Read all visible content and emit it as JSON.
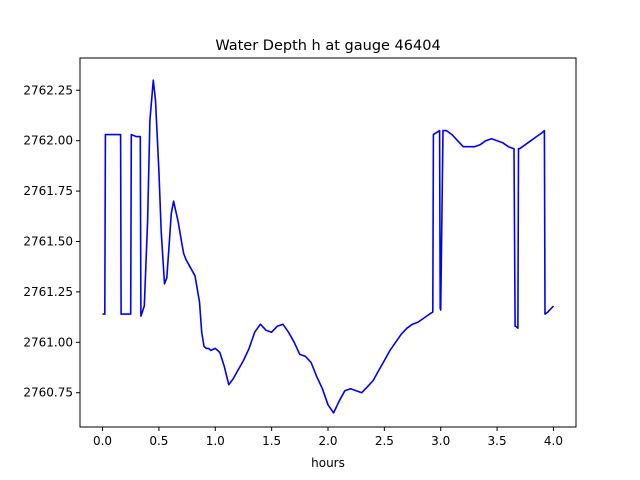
{
  "chart_data": {
    "type": "line",
    "title": "Water Depth h at gauge 46404",
    "xlabel": "hours",
    "ylabel": "",
    "xlim": [
      -0.2,
      4.2
    ],
    "ylim": [
      2760.58,
      2762.41
    ],
    "xticks": [
      0.0,
      0.5,
      1.0,
      1.5,
      2.0,
      2.5,
      3.0,
      3.5,
      4.0
    ],
    "xtick_labels": [
      "0.0",
      "0.5",
      "1.0",
      "1.5",
      "2.0",
      "2.5",
      "3.0",
      "3.5",
      "4.0"
    ],
    "yticks": [
      2760.75,
      2761.0,
      2761.25,
      2761.5,
      2761.75,
      2762.0,
      2762.25
    ],
    "ytick_labels": [
      "2760.75",
      "2761.00",
      "2761.25",
      "2761.50",
      "2761.75",
      "2762.00",
      "2762.25"
    ],
    "grid": false,
    "series": [
      {
        "color": "#0000ff",
        "x": [
          0.0,
          0.02,
          0.025,
          0.16,
          0.165,
          0.25,
          0.255,
          0.3,
          0.33,
          0.335,
          0.34,
          0.37,
          0.4,
          0.42,
          0.45,
          0.47,
          0.5,
          0.52,
          0.55,
          0.57,
          0.59,
          0.61,
          0.63,
          0.65,
          0.67,
          0.7,
          0.72,
          0.74,
          0.78,
          0.82,
          0.86,
          0.88,
          0.9,
          0.92,
          0.94,
          0.96,
          1.0,
          1.04,
          1.08,
          1.12,
          1.16,
          1.2,
          1.25,
          1.3,
          1.35,
          1.4,
          1.45,
          1.5,
          1.55,
          1.6,
          1.65,
          1.7,
          1.75,
          1.8,
          1.85,
          1.9,
          1.95,
          2.0,
          2.05,
          2.1,
          2.15,
          2.2,
          2.25,
          2.3,
          2.35,
          2.4,
          2.45,
          2.5,
          2.55,
          2.6,
          2.65,
          2.7,
          2.75,
          2.8,
          2.85,
          2.9,
          2.93,
          2.935,
          2.99,
          2.995,
          3.0,
          3.02,
          3.025,
          3.05,
          3.1,
          3.15,
          3.2,
          3.25,
          3.3,
          3.35,
          3.4,
          3.45,
          3.5,
          3.55,
          3.6,
          3.65,
          3.66,
          3.665,
          3.685,
          3.69,
          3.695,
          3.7,
          3.75,
          3.8,
          3.85,
          3.9,
          3.92,
          3.925,
          3.95,
          4.0
        ],
        "y": [
          2761.14,
          2761.14,
          2762.03,
          2762.03,
          2761.14,
          2761.14,
          2762.03,
          2762.02,
          2762.02,
          2762.02,
          2761.13,
          2761.18,
          2761.6,
          2762.1,
          2762.3,
          2762.2,
          2761.85,
          2761.55,
          2761.29,
          2761.32,
          2761.48,
          2761.64,
          2761.7,
          2761.65,
          2761.6,
          2761.5,
          2761.44,
          2761.41,
          2761.37,
          2761.33,
          2761.2,
          2761.05,
          2760.98,
          2760.97,
          2760.97,
          2760.96,
          2760.97,
          2760.95,
          2760.88,
          2760.79,
          2760.82,
          2760.86,
          2760.91,
          2760.97,
          2761.05,
          2761.09,
          2761.06,
          2761.05,
          2761.08,
          2761.09,
          2761.05,
          2761.0,
          2760.94,
          2760.93,
          2760.9,
          2760.83,
          2760.77,
          2760.69,
          2760.65,
          2760.71,
          2760.76,
          2760.77,
          2760.76,
          2760.75,
          2760.78,
          2760.81,
          2760.86,
          2760.91,
          2760.96,
          2761.0,
          2761.04,
          2761.07,
          2761.09,
          2761.1,
          2761.12,
          2761.14,
          2761.15,
          2762.03,
          2762.05,
          2761.17,
          2761.16,
          2762.05,
          2762.05,
          2762.05,
          2762.03,
          2762.0,
          2761.97,
          2761.97,
          2761.97,
          2761.98,
          2762.0,
          2762.01,
          2762.0,
          2761.99,
          2761.97,
          2761.96,
          2761.08,
          2761.08,
          2761.07,
          2761.96,
          2761.96,
          2761.96,
          2761.98,
          2762.0,
          2762.02,
          2762.04,
          2762.05,
          2761.14,
          2761.15,
          2761.18
        ]
      }
    ]
  }
}
